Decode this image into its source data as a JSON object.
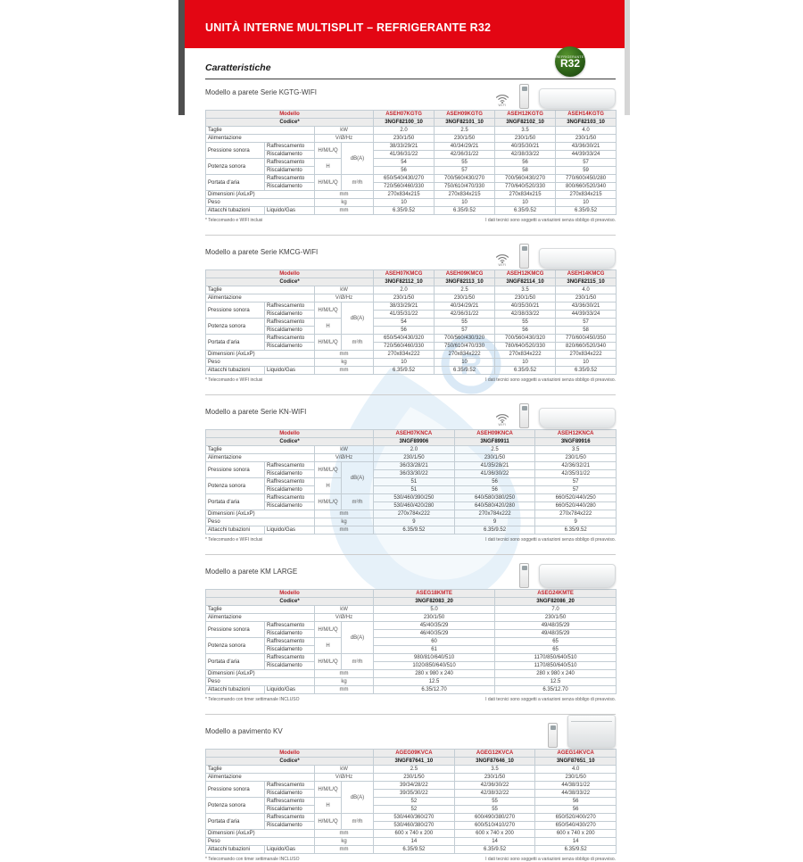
{
  "banner": {
    "title": "UNITÀ INTERNE MULTISPLIT – REFRIGERANTE R32"
  },
  "page_heading": "Caratteristiche",
  "r32_badge": {
    "top_label": "REFRIGERANTE",
    "label": "R32",
    "color": "#2e6319"
  },
  "icon_labels": {
    "wifi": "WIFI"
  },
  "tech_note": "I dati tecnici sono soggetti a variazioni senza obbligo di preavviso.",
  "table_labels": {
    "modello": "Modello",
    "codice": "Codice*",
    "taglie": "Taglie",
    "alimentazione": "Alimentazione",
    "pressione": "Pressione sonora",
    "potenza": "Potenza sonora",
    "portata": "Portata d'aria",
    "dimensioni": "Dimensioni (AxLxP)",
    "peso": "Peso",
    "attacchi": "Attacchi tubazioni",
    "raffrescamento": "Raffrescamento",
    "riscaldamento": "Riscaldamento",
    "liquido_gas": "Liquido/Gas",
    "hmlq": "H/M/L/Q",
    "h": "H",
    "unit_kw": "kW",
    "unit_v": "V/Ø/Hz",
    "unit_db": "dB(A)",
    "unit_m3h": "m³/h",
    "unit_mm": "mm",
    "unit_kg": "kg"
  },
  "sections": [
    {
      "title": "Modello a parete Serie KGTG-WIFI",
      "icons": [
        "wifi",
        "remote",
        "wall"
      ],
      "note": "* Telecomando e WIFI inclusi",
      "models": [
        "ASEH07KGTG",
        "ASEH09KGTG",
        "ASEH12KGTG",
        "ASEH14KGTG"
      ],
      "codes": [
        "3NGF82100_10",
        "3NGF82101_10",
        "3NGF82102_10",
        "3NGF82103_10"
      ],
      "taglie": [
        "2.0",
        "2.5",
        "3.5",
        "4.0"
      ],
      "alimentazione": [
        "230/1/50",
        "230/1/50",
        "230/1/50",
        "230/1/50"
      ],
      "pressione_raff": [
        "38/33/29/21",
        "40/34/29/21",
        "40/35/30/21",
        "43/36/30/21"
      ],
      "pressione_risc": [
        "41/36/31/22",
        "42/36/31/22",
        "42/38/33/22",
        "44/39/33/24"
      ],
      "potenza_raff": [
        "54",
        "55",
        "56",
        "57"
      ],
      "potenza_risc": [
        "56",
        "57",
        "58",
        "59"
      ],
      "portata_raff": [
        "650/540/430/270",
        "700/560/430/270",
        "700/560/430/270",
        "770/600/450/280"
      ],
      "portata_risc": [
        "720/560/460/330",
        "750/610/470/330",
        "770/640/520/330",
        "800/660/520/340"
      ],
      "dimensioni": [
        "270x834x215",
        "270x834x215",
        "270x834x215",
        "270x834x215"
      ],
      "peso": [
        "10",
        "10",
        "10",
        "10"
      ],
      "attacchi": [
        "6.35/9.52",
        "6.35/9.52",
        "6.35/9.52",
        "6.35/9.52"
      ]
    },
    {
      "title": "Modello a parete Serie KMCG-WIFI",
      "icons": [
        "wifi",
        "remote",
        "wall"
      ],
      "note": "* Telecomando e WIFI inclusi",
      "models": [
        "ASEH07KMCG",
        "ASEH09KMCG",
        "ASEH12KMCG",
        "ASEH14KMCG"
      ],
      "codes": [
        "3NGF82112_10",
        "3NGF82113_10",
        "3NGF82114_10",
        "3NGF82115_10"
      ],
      "taglie": [
        "2.0",
        "2.5",
        "3.5",
        "4.0"
      ],
      "alimentazione": [
        "230/1/50",
        "230/1/50",
        "230/1/50",
        "230/1/50"
      ],
      "pressione_raff": [
        "38/33/29/21",
        "40/34/29/21",
        "40/35/30/21",
        "43/36/30/21"
      ],
      "pressione_risc": [
        "41/35/31/22",
        "42/36/31/22",
        "42/38/33/22",
        "44/39/33/24"
      ],
      "potenza_raff": [
        "54",
        "55",
        "55",
        "57"
      ],
      "potenza_risc": [
        "56",
        "57",
        "56",
        "58"
      ],
      "portata_raff": [
        "650/540/430/320",
        "700/560/430/320",
        "700/560/430/320",
        "770/600/450/350"
      ],
      "portata_risc": [
        "720/560/460/330",
        "750/610/470/330",
        "780/640/520/330",
        "820/660/520/340"
      ],
      "dimensioni": [
        "270x834x222",
        "270x834x222",
        "270x834x222",
        "270x834x222"
      ],
      "peso": [
        "10",
        "10",
        "10",
        "10"
      ],
      "attacchi": [
        "6.35/9.52",
        "6.35/9.52",
        "6.35/9.52",
        "6.35/9.52"
      ]
    },
    {
      "title": "Modello a parete Serie KN-WIFI",
      "icons": [
        "wifi",
        "remote",
        "wall"
      ],
      "note": "* Telecomando e WIFI inclusi",
      "models": [
        "ASEH07KNCA",
        "ASEH09KNCA",
        "ASEH12KNCA"
      ],
      "codes": [
        "3NGF89906",
        "3NGF89911",
        "3NGF89916"
      ],
      "taglie": [
        "2.0",
        "2.5",
        "3.5"
      ],
      "alimentazione": [
        "230/1/50",
        "230/1/50",
        "230/1/50"
      ],
      "pressione_raff": [
        "36/33/28/21",
        "41/35/28/21",
        "42/36/32/21"
      ],
      "pressione_risc": [
        "36/33/30/22",
        "41/36/30/22",
        "42/35/31/22"
      ],
      "potenza_raff": [
        "51",
        "56",
        "57"
      ],
      "potenza_risc": [
        "51",
        "56",
        "57"
      ],
      "portata_raff": [
        "530/460/390/250",
        "640/580/380/250",
        "660/520/440/250"
      ],
      "portata_risc": [
        "530/460/420/280",
        "640/580/420/280",
        "660/520/440/280"
      ],
      "dimensioni": [
        "270x784x222",
        "270x784x222",
        "270x784x222"
      ],
      "peso": [
        "9",
        "9",
        "9"
      ],
      "attacchi": [
        "6.35/9.52",
        "6.35/9.52",
        "6.35/9.52"
      ]
    },
    {
      "title": "Modello a parete KM LARGE",
      "icons": [
        "remote",
        "wall-large"
      ],
      "note": "* Telecomando con timer settimanale INCLUSO",
      "models": [
        "ASEG18KMTE",
        "ASEG24KMTE"
      ],
      "codes": [
        "3NGF82083_20",
        "3NGF82086_20"
      ],
      "taglie": [
        "5.0",
        "7.0"
      ],
      "alimentazione": [
        "230/1/50",
        "230/1/50"
      ],
      "pressione_raff": [
        "45/40/35/29",
        "49/48/35/29"
      ],
      "pressione_risc": [
        "46/40/35/29",
        "49/48/35/29"
      ],
      "potenza_raff": [
        "60",
        "65"
      ],
      "potenza_risc": [
        "61",
        "65"
      ],
      "portata_raff": [
        "980/810/640/510",
        "1170/850/640/510"
      ],
      "portata_risc": [
        "1020/850/640/510",
        "1170/850/640/510"
      ],
      "dimensioni": [
        "280 x 980 x 240",
        "280 x 980 x 240"
      ],
      "peso": [
        "12.5",
        "12.5"
      ],
      "attacchi": [
        "6.35/12.70",
        "6.35/12.70"
      ]
    },
    {
      "title": "Modello a pavimento KV",
      "icons": [
        "remote",
        "floor"
      ],
      "note": "* Telecomando con timer settimanale INCLUSO",
      "models": [
        "AGEG09KVCA",
        "AGEG12KVCA",
        "AGEG14KVCA"
      ],
      "codes": [
        "3NGF87641_10",
        "3NGF87646_10",
        "3NGF87651_10"
      ],
      "taglie": [
        "2.5",
        "3.5",
        "4.0"
      ],
      "alimentazione": [
        "230/1/50",
        "230/1/50",
        "230/1/50"
      ],
      "pressione_raff": [
        "39/34/28/22",
        "42/36/30/22",
        "44/38/31/22"
      ],
      "pressione_risc": [
        "39/35/30/22",
        "42/38/32/22",
        "44/38/33/22"
      ],
      "potenza_raff": [
        "52",
        "55",
        "56"
      ],
      "potenza_risc": [
        "52",
        "55",
        "56"
      ],
      "portata_raff": [
        "530/440/360/270",
        "600/490/380/270",
        "650/520/400/270"
      ],
      "portata_risc": [
        "530/460/380/270",
        "600/510/410/270",
        "650/540/430/270"
      ],
      "dimensioni": [
        "600 x 740 x 200",
        "600 x 740 x 200",
        "600 x 740 x 200"
      ],
      "peso": [
        "14",
        "14",
        "14"
      ],
      "attacchi": [
        "6.35/9.52",
        "6.35/9.52",
        "6.35/9.52"
      ]
    }
  ]
}
